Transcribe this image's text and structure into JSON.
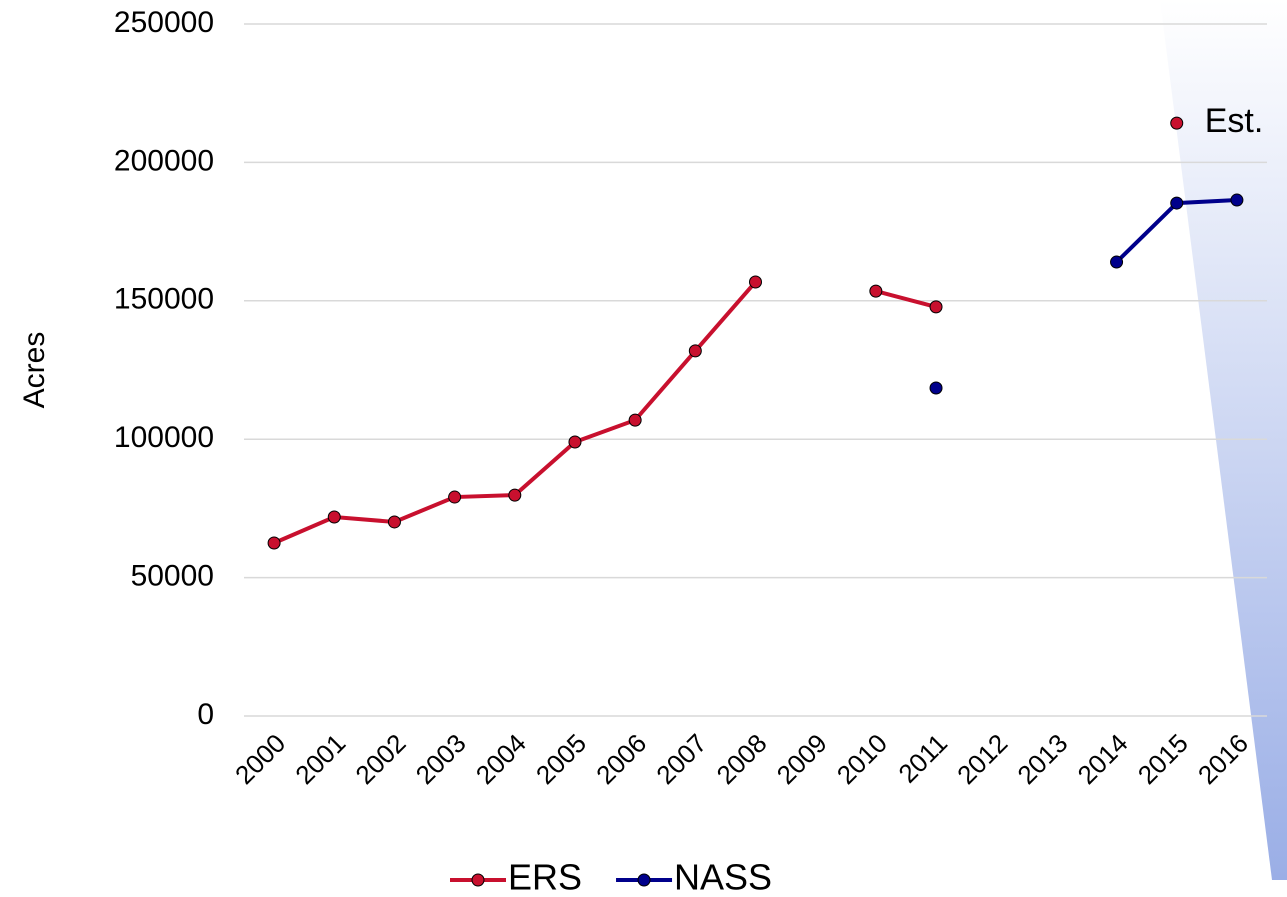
{
  "chart_data": {
    "type": "line",
    "y_label": "Acres",
    "categories": [
      "2000",
      "2001",
      "2002",
      "2003",
      "2004",
      "2005",
      "2006",
      "2007",
      "2008",
      "2009",
      "2010",
      "2011",
      "2012",
      "2013",
      "2014",
      "2015",
      "2016"
    ],
    "series": [
      {
        "name": "ERS",
        "color": "#c8102e",
        "values": [
          62500,
          71900,
          70100,
          79100,
          79800,
          99000,
          106900,
          131900,
          156800,
          null,
          153500,
          147800,
          null,
          null,
          null,
          null,
          null
        ]
      },
      {
        "name": "NASS",
        "color": "#00008b",
        "values": [
          null,
          null,
          null,
          null,
          null,
          null,
          null,
          null,
          null,
          null,
          null,
          118500,
          null,
          null,
          164000,
          185300,
          186400
        ]
      }
    ],
    "annotations": [
      {
        "text": "Est.",
        "x": "2015",
        "y": 214200,
        "color": "#c8102e"
      }
    ],
    "ylim": [
      0,
      250000
    ],
    "yticks": [
      0,
      50000,
      100000,
      150000,
      200000,
      250000
    ],
    "grid": true,
    "legend": "bottom"
  }
}
